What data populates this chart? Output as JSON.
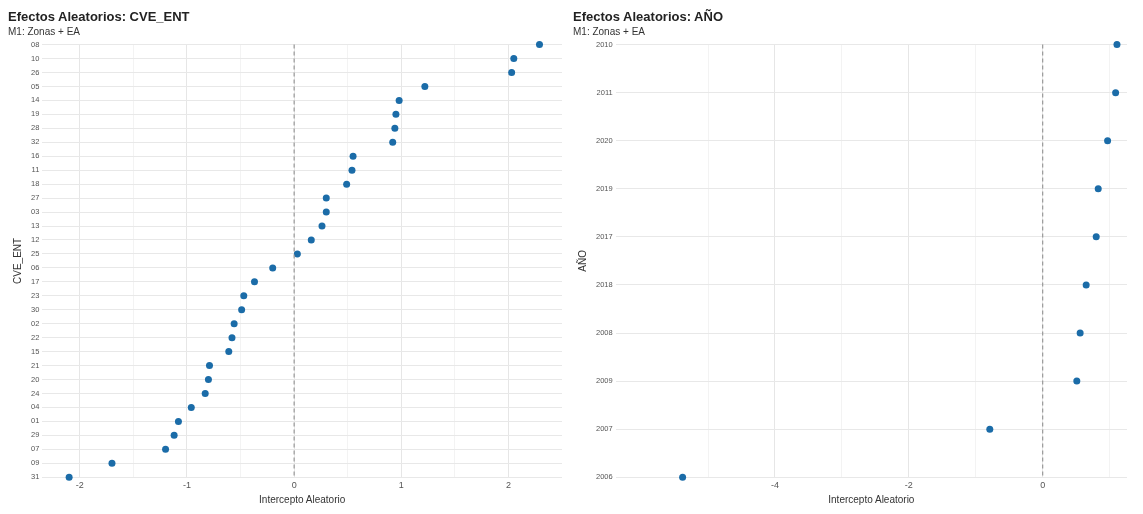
{
  "chart_data": [
    {
      "type": "scatter",
      "orientation": "horizontal",
      "title": "Efectos Aleatorios: CVE_ENT",
      "subtitle": "M1: Zonas + EA",
      "xlabel": "Intercepto Aleatorio",
      "ylabel": "CVE_ENT",
      "categories": [
        "08",
        "10",
        "26",
        "05",
        "14",
        "19",
        "28",
        "32",
        "16",
        "11",
        "18",
        "27",
        "03",
        "13",
        "12",
        "25",
        "06",
        "17",
        "23",
        "30",
        "02",
        "22",
        "15",
        "21",
        "20",
        "24",
        "04",
        "01",
        "29",
        "07",
        "09",
        "31"
      ],
      "series": [
        {
          "color": "#1b6ca8",
          "values": [
            2.29,
            2.05,
            2.03,
            1.22,
            0.98,
            0.95,
            0.94,
            0.92,
            0.55,
            0.54,
            0.49,
            0.3,
            0.3,
            0.26,
            0.16,
            0.03,
            -0.2,
            -0.37,
            -0.47,
            -0.49,
            -0.56,
            -0.58,
            -0.61,
            -0.79,
            -0.8,
            -0.83,
            -0.96,
            -1.08,
            -1.12,
            -1.2,
            -1.7,
            -2.1
          ]
        }
      ],
      "xlim": [
        -2.35,
        2.5
      ],
      "xticks": [
        {
          "value": -1.5,
          "label": null
        },
        {
          "value": -0.5,
          "label": null
        },
        {
          "value": 0.5,
          "label": null
        },
        {
          "value": 1.5,
          "label": null
        },
        -2,
        -1,
        0,
        1,
        2
      ],
      "ref_lines": [
        {
          "axis": "x",
          "value": 0,
          "color": "#999999",
          "line_style": "dashed"
        }
      ],
      "grid": true,
      "marker": "circle",
      "legend": false
    },
    {
      "type": "scatter",
      "orientation": "horizontal",
      "title": "Efectos Aleatorios: AÑO",
      "subtitle": "M1: Zonas + EA",
      "xlabel": "Intercepto Aleatorio",
      "ylabel": "AÑO",
      "categories": [
        "2010",
        "2011",
        "2020",
        "2019",
        "2017",
        "2018",
        "2008",
        "2009",
        "2007",
        "2006"
      ],
      "series": [
        {
          "color": "#1b6ca8",
          "values": [
            1.11,
            1.09,
            0.97,
            0.83,
            0.8,
            0.65,
            0.56,
            0.51,
            -0.79,
            -5.38
          ]
        }
      ],
      "xlim": [
        -6.38,
        1.26
      ],
      "xticks": [
        {
          "value": -5,
          "label": null
        },
        {
          "value": -3,
          "label": null
        },
        {
          "value": -1,
          "label": null
        },
        {
          "value": 1,
          "label": null
        },
        -4,
        -2,
        0
      ],
      "ref_lines": [
        {
          "axis": "x",
          "value": 0,
          "color": "#999999",
          "line_style": "dashed"
        }
      ],
      "grid": true,
      "marker": "circle",
      "legend": false
    }
  ]
}
